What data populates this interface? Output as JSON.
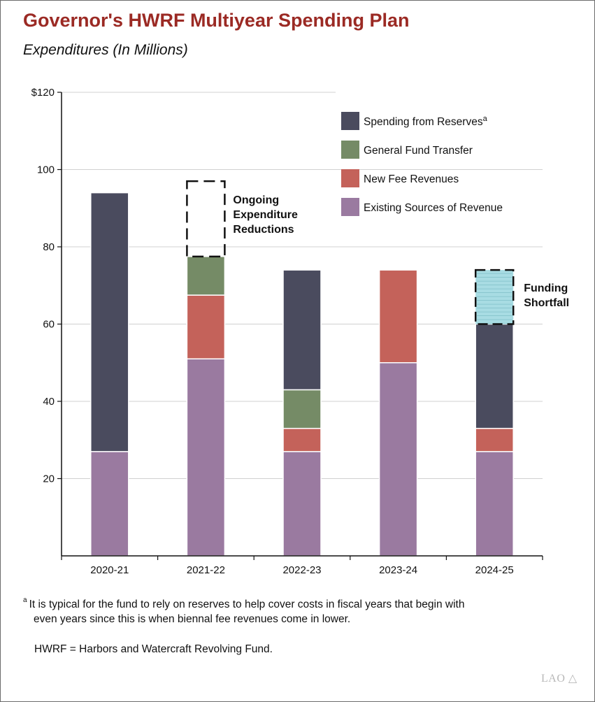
{
  "title": "Governor's HWRF Multiyear Spending Plan",
  "subtitle": "Expenditures (In Millions)",
  "chart_data": {
    "type": "bar",
    "stacked": true,
    "categories": [
      "2020-21",
      "2021-22",
      "2022-23",
      "2023-24",
      "2024-25"
    ],
    "ylim": [
      0,
      120
    ],
    "y_ticks": [
      20,
      40,
      60,
      80,
      100,
      120
    ],
    "y_tick_labels": [
      "20",
      "40",
      "60",
      "80",
      "100",
      "$120"
    ],
    "grid": true,
    "legend_position": "top-right",
    "series": [
      {
        "name": "Existing Sources of Revenue",
        "color": "#9a7aa0",
        "values": [
          27,
          51,
          27,
          50,
          27
        ]
      },
      {
        "name": "New Fee Revenues",
        "color": "#c4625a",
        "values": [
          0,
          16.5,
          6,
          24,
          6
        ]
      },
      {
        "name": "General Fund Transfer",
        "color": "#758b66",
        "values": [
          0,
          10,
          10,
          0,
          0
        ]
      },
      {
        "name": "Spending from Reserves",
        "legend_superscript": "a",
        "color": "#4a4b5e",
        "values": [
          67,
          0,
          31,
          0,
          27
        ]
      }
    ],
    "overlays": [
      {
        "kind": "ongoing-reductions",
        "category": "2021-22",
        "from": 77.5,
        "to": 97,
        "label_lines": [
          "Ongoing",
          "Expenditure",
          "Reductions"
        ]
      },
      {
        "kind": "funding-shortfall",
        "category": "2024-25",
        "from": 60,
        "to": 74,
        "color": "#a8dce3",
        "label_lines": [
          "Funding",
          "Shortfall"
        ]
      }
    ]
  },
  "footnote": {
    "marker": "a",
    "line1": "It is typical for the fund to rely on reserves to help cover costs in fiscal years that begin with",
    "line2": "even years since this is when biennal fee revenues come in lower."
  },
  "abbreviation": "HWRF = Harbors and Watercraft Revolving Fund.",
  "logo_text": "LAO"
}
